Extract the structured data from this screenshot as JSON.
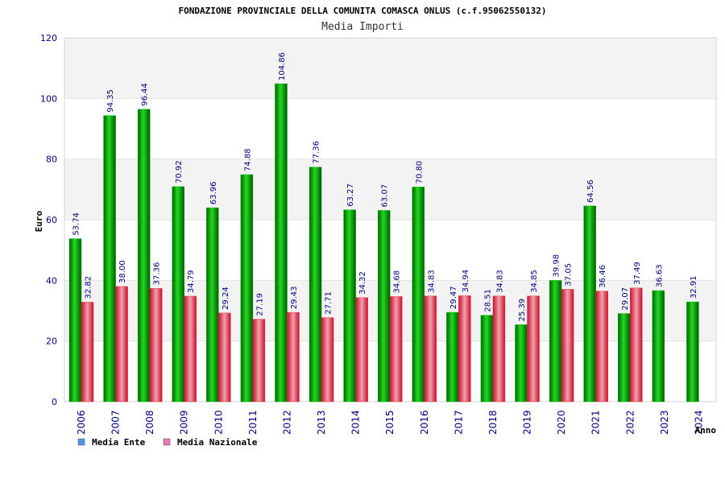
{
  "chart_data": {
    "type": "bar",
    "title": "FONDAZIONE PROVINCIALE DELLA COMUNITA COMASCA ONLUS (c.f.95062550132)",
    "subtitle": "Media Importi",
    "xlabel": "Anno",
    "ylabel": "Euro",
    "ylim": [
      0,
      120
    ],
    "yticks": [
      "0",
      "20",
      "40",
      "60",
      "80",
      "100",
      "120"
    ],
    "grid": true,
    "legend_placement": "bottom-left",
    "categories": [
      "2006",
      "2007",
      "2008",
      "2009",
      "2010",
      "2011",
      "2012",
      "2013",
      "2014",
      "2015",
      "2016",
      "2017",
      "2018",
      "2019",
      "2020",
      "2021",
      "2022",
      "2023",
      "2024"
    ],
    "series": [
      {
        "name": "Media Ente",
        "color": "#00b400",
        "legend_color": "#4f94ea",
        "values": [
          53.74,
          94.35,
          96.44,
          70.92,
          63.96,
          74.88,
          104.86,
          77.36,
          63.27,
          63.07,
          70.8,
          29.47,
          28.51,
          25.39,
          39.98,
          64.56,
          29.07,
          36.63,
          32.91
        ],
        "labels": [
          "53.74",
          "94.35",
          "96.44",
          "70.92",
          "63.96",
          "74.88",
          "104.86",
          "77.36",
          "63.27",
          "63.07",
          "70.80",
          "29.47",
          "28.51",
          "25.39",
          "39.98",
          "64.56",
          "29.07",
          "36.63",
          "32.91"
        ]
      },
      {
        "name": "Media Nazionale",
        "color": "#e8303c",
        "legend_color": "#e87ab4",
        "values": [
          32.82,
          38.0,
          37.36,
          34.79,
          29.24,
          27.19,
          29.43,
          27.71,
          34.32,
          34.68,
          34.83,
          34.94,
          34.83,
          34.85,
          37.05,
          36.46,
          37.49,
          null,
          null
        ],
        "labels": [
          "32.82",
          "38.00",
          "37.36",
          "34.79",
          "29.24",
          "27.19",
          "29.43",
          "27.71",
          "34.32",
          "34.68",
          "34.83",
          "34.94",
          "34.83",
          "34.85",
          "37.05",
          "36.46",
          "37.49",
          "",
          ""
        ]
      }
    ]
  }
}
